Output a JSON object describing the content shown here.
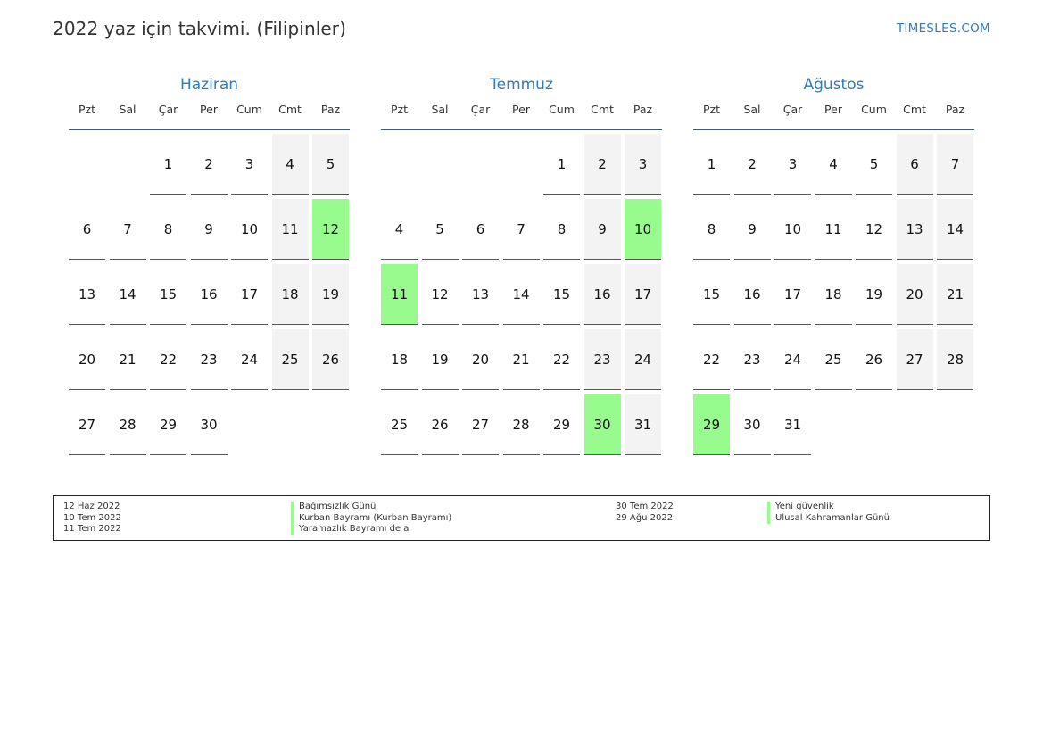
{
  "header": {
    "title": "2022 yaz için takvimi. (Filipinler)",
    "site": "TIMESLES.COM"
  },
  "colors": {
    "accent": "#2f7cb8",
    "holiday": "#98fb8e",
    "weekend": "#f3f3f3",
    "header_rule": "#3e5873"
  },
  "weekdays": [
    "Pzt",
    "Sal",
    "Çar",
    "Per",
    "Cum",
    "Cmt",
    "Paz"
  ],
  "months": [
    {
      "name": "Haziran",
      "start_weekday": 2,
      "days": 30,
      "holidays": [
        12
      ]
    },
    {
      "name": "Temmuz",
      "start_weekday": 4,
      "days": 31,
      "holidays": [
        10,
        11,
        30
      ]
    },
    {
      "name": "Ağustos",
      "start_weekday": 0,
      "days": 31,
      "holidays": [
        29
      ]
    }
  ],
  "legend": {
    "left": [
      {
        "date": "12 Haz 2022",
        "name": "Bağımsızlık Günü"
      },
      {
        "date": "10 Tem 2022",
        "name": "Kurban Bayramı (Kurban Bayramı)"
      },
      {
        "date": "11 Tem 2022",
        "name": "Yaramazlık Bayramı de a"
      }
    ],
    "right": [
      {
        "date": "30 Tem 2022",
        "name": "Yeni güvenlik"
      },
      {
        "date": "29 Ağu 2022",
        "name": "Ulusal Kahramanlar Günü"
      }
    ]
  }
}
